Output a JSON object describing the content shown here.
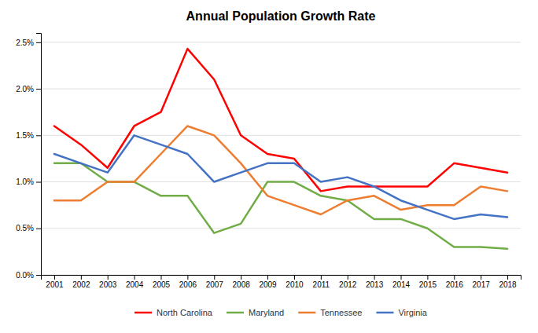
{
  "chart_data": {
    "type": "line",
    "title": "Annual Population Growth Rate",
    "x": [
      2001,
      2002,
      2003,
      2004,
      2005,
      2006,
      2007,
      2008,
      2009,
      2010,
      2011,
      2012,
      2013,
      2014,
      2015,
      2016,
      2017,
      2018
    ],
    "series": [
      {
        "name": "North Carolina",
        "color": "#FF0000",
        "values": [
          0.016,
          0.014,
          0.0115,
          0.016,
          0.0175,
          0.0243,
          0.021,
          0.015,
          0.013,
          0.0125,
          0.009,
          0.0095,
          0.0095,
          0.0095,
          0.0095,
          0.012,
          0.0115,
          0.011
        ]
      },
      {
        "name": "Maryland",
        "color": "#70AD47",
        "values": [
          0.012,
          0.012,
          0.01,
          0.01,
          0.0085,
          0.0085,
          0.0045,
          0.0055,
          0.01,
          0.01,
          0.0085,
          0.008,
          0.006,
          0.006,
          0.005,
          0.003,
          0.003,
          0.0028
        ]
      },
      {
        "name": "Tennessee",
        "color": "#ED7D31",
        "values": [
          0.008,
          0.008,
          0.01,
          0.01,
          0.013,
          0.016,
          0.015,
          0.012,
          0.0085,
          0.0075,
          0.0065,
          0.008,
          0.0085,
          0.007,
          0.0075,
          0.0075,
          0.0095,
          0.009
        ]
      },
      {
        "name": "Virginia",
        "color": "#4472C4",
        "values": [
          0.013,
          0.012,
          0.011,
          0.015,
          0.014,
          0.013,
          0.01,
          0.011,
          0.012,
          0.012,
          0.01,
          0.0105,
          0.0095,
          0.008,
          0.007,
          0.006,
          0.0065,
          0.0062
        ]
      }
    ],
    "xlim": [
      2000.5,
      2018.5
    ],
    "xticks": [
      2001,
      2002,
      2003,
      2004,
      2005,
      2006,
      2007,
      2008,
      2009,
      2010,
      2011,
      2012,
      2013,
      2014,
      2015,
      2016,
      2017,
      2018
    ],
    "ylim": [
      0.0,
      0.026
    ],
    "yticks": [
      {
        "value": 0.0,
        "label": "0.0%"
      },
      {
        "value": 0.005,
        "label": "0.5%"
      },
      {
        "value": 0.01,
        "label": "1.0%"
      },
      {
        "value": 0.015,
        "label": "1.5%"
      },
      {
        "value": 0.02,
        "label": "2.0%"
      },
      {
        "value": 0.025,
        "label": "2.5%"
      }
    ],
    "grid": true,
    "legend": "bottom"
  }
}
